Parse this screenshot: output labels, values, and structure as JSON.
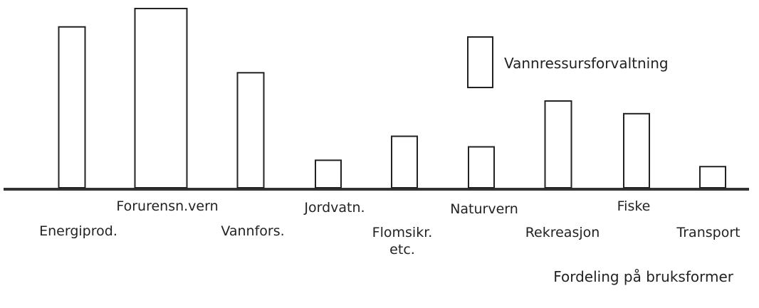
{
  "chart_data": {
    "type": "bar",
    "title": "Fordeling på bruksformer",
    "categories": [
      "Energiprod.",
      "Forurensn.vern",
      "Vannfors.",
      "Jordvatn.",
      "Flomsikr.\netc.",
      "Naturvern",
      "Rekreasjon",
      "Fiske",
      "Transport"
    ],
    "series": [
      {
        "name": "Vannressursforvaltning",
        "color": "#ffffff",
        "values": [
          228,
          254,
          163,
          39,
          73,
          58,
          123,
          105,
          30
        ]
      }
    ],
    "ylim": [
      0,
      254
    ]
  }
}
